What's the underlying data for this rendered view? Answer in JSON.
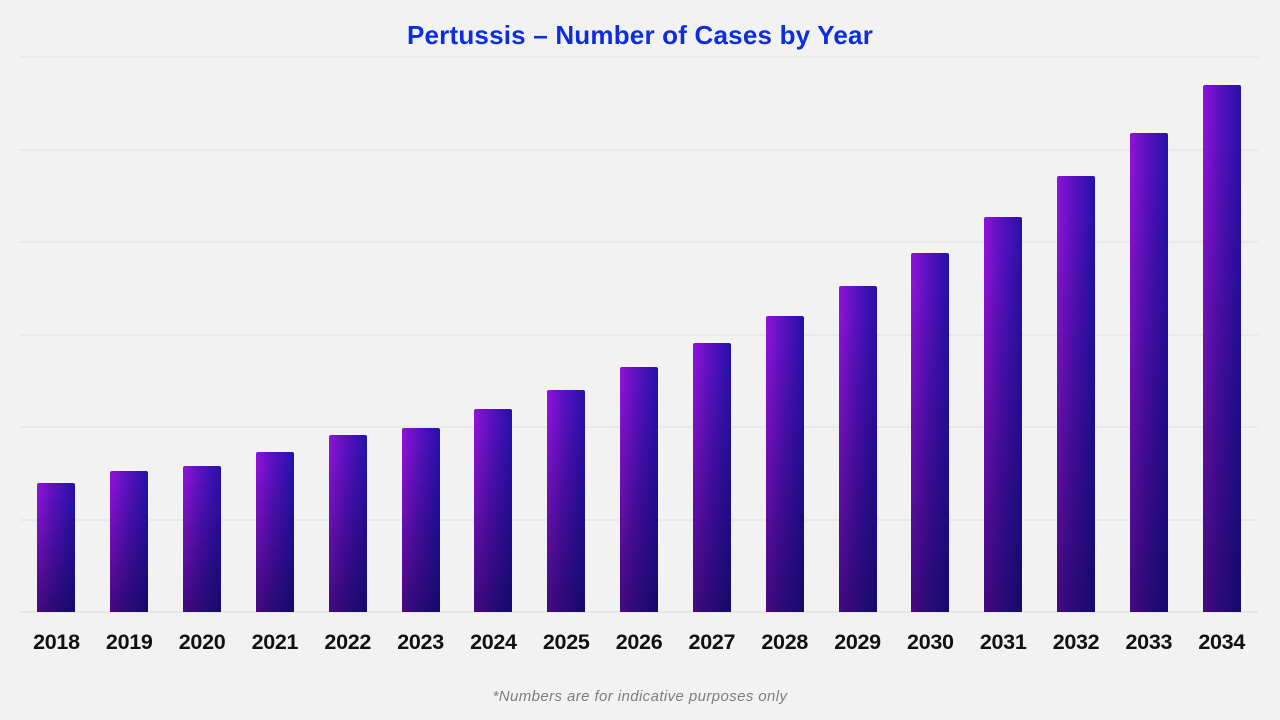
{
  "title": "Pertussis – Number of Cases by Year",
  "footnote": "*Numbers are for indicative purposes only",
  "colors": {
    "background": "#f2f2f2",
    "title": "#0d2ee0",
    "gridline": "#e0e0e0",
    "axis_label": "#111111",
    "footnote": "#7d7d7d",
    "bar_gradient_left": "#9013d8",
    "bar_gradient_right": "#2511a8",
    "bar_bottom_shade": "#0f0880"
  },
  "chart_data": {
    "type": "bar",
    "title": "Pertussis – Number of Cases by Year",
    "categories": [
      "2018",
      "2019",
      "2020",
      "2021",
      "2022",
      "2023",
      "2024",
      "2025",
      "2026",
      "2027",
      "2028",
      "2029",
      "2030",
      "2031",
      "2032",
      "2033",
      "2034"
    ],
    "values": [
      695,
      760,
      790,
      865,
      955,
      995,
      1095,
      1200,
      1325,
      1455,
      1600,
      1760,
      1940,
      2135,
      2355,
      2590,
      2850
    ],
    "xlabel": "",
    "ylabel": "",
    "ylim": [
      0,
      3000
    ],
    "gridline_step": 500,
    "grid": true,
    "y_axis_labels_visible": false,
    "legend": false,
    "annotation": "*Numbers are for indicative purposes only"
  }
}
